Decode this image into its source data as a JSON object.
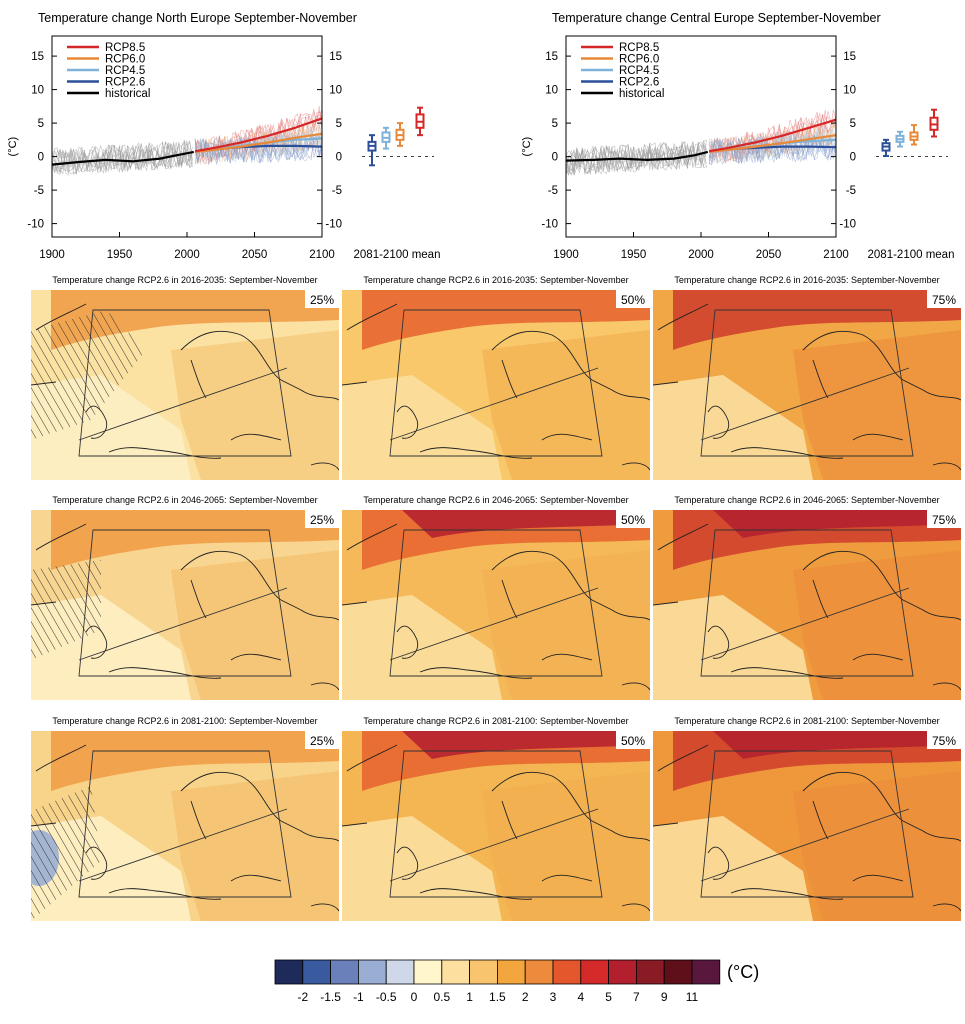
{
  "time_series_panels": [
    {
      "title": "Temperature change North Europe September-November",
      "ylabel": "(°C)",
      "xlabel_right": "2081-2100 mean",
      "chart_data": {
        "type": "line",
        "xlim": [
          1900,
          2100
        ],
        "ylim": [
          -12,
          18
        ],
        "x_ticks": [
          "1900",
          "1950",
          "2000",
          "2050",
          "2100"
        ],
        "y_ticks": [
          "15",
          "10",
          "5",
          "0",
          "-5",
          "-10"
        ],
        "grid": false,
        "legend_position": "top-left",
        "series": [
          {
            "name": "RCP8.5",
            "color": "#d62728",
            "x": [
              2006,
              2020,
              2040,
              2060,
              2080,
              2100
            ],
            "y": [
              0.8,
              1.3,
              2.1,
              3.1,
              4.3,
              5.7
            ]
          },
          {
            "name": "RCP6.0",
            "color": "#e8893a",
            "x": [
              2006,
              2020,
              2040,
              2060,
              2080,
              2100
            ],
            "y": [
              0.7,
              1.0,
              1.5,
              2.1,
              2.8,
              3.4
            ]
          },
          {
            "name": "RCP4.5",
            "color": "#7fb2d9",
            "x": [
              2006,
              2020,
              2040,
              2060,
              2080,
              2100
            ],
            "y": [
              0.7,
              1.1,
              1.6,
              2.1,
              2.5,
              2.7
            ]
          },
          {
            "name": "RCP2.6",
            "color": "#2c4f9a",
            "x": [
              2006,
              2020,
              2040,
              2060,
              2080,
              2100
            ],
            "y": [
              0.7,
              1.1,
              1.4,
              1.6,
              1.6,
              1.5
            ]
          },
          {
            "name": "historical",
            "color": "#000000",
            "x": [
              1900,
              1920,
              1940,
              1960,
              1980,
              1995,
              2005
            ],
            "y": [
              -1.2,
              -0.8,
              -0.5,
              -0.7,
              -0.3,
              0.3,
              0.7
            ]
          }
        ],
        "boxes_2081_2100": [
          {
            "name": "RCP2.6",
            "color": "#2c4f9a",
            "min": -1.3,
            "q1": 0.9,
            "median": 1.6,
            "q3": 2.2,
            "max": 3.2
          },
          {
            "name": "RCP4.5",
            "color": "#7fb2d9",
            "min": 1.2,
            "q1": 2.2,
            "median": 2.8,
            "q3": 3.6,
            "max": 4.3
          },
          {
            "name": "RCP6.0",
            "color": "#e8893a",
            "min": 1.6,
            "q1": 2.5,
            "median": 3.2,
            "q3": 4.0,
            "max": 5.0
          },
          {
            "name": "RCP8.5",
            "color": "#d62728",
            "min": 3.2,
            "q1": 4.3,
            "median": 5.2,
            "q3": 6.3,
            "max": 7.3
          }
        ]
      }
    },
    {
      "title": "Temperature change Central Europe September-November",
      "ylabel": "(°C)",
      "xlabel_right": "2081-2100 mean",
      "chart_data": {
        "type": "line",
        "xlim": [
          1900,
          2100
        ],
        "ylim": [
          -12,
          18
        ],
        "x_ticks": [
          "1900",
          "1950",
          "2000",
          "2050",
          "2100"
        ],
        "y_ticks": [
          "15",
          "10",
          "5",
          "0",
          "-5",
          "-10"
        ],
        "grid": false,
        "legend_position": "top-left",
        "series": [
          {
            "name": "RCP8.5",
            "color": "#d62728",
            "x": [
              2006,
              2020,
              2040,
              2060,
              2080,
              2100
            ],
            "y": [
              0.8,
              1.3,
              2.1,
              3.1,
              4.3,
              5.5
            ]
          },
          {
            "name": "RCP6.0",
            "color": "#e8893a",
            "x": [
              2006,
              2020,
              2040,
              2060,
              2080,
              2100
            ],
            "y": [
              0.7,
              1.0,
              1.5,
              2.0,
              2.6,
              3.2
            ]
          },
          {
            "name": "RCP4.5",
            "color": "#7fb2d9",
            "x": [
              2006,
              2020,
              2040,
              2060,
              2080,
              2100
            ],
            "y": [
              0.7,
              1.1,
              1.5,
              2.0,
              2.3,
              2.5
            ]
          },
          {
            "name": "RCP2.6",
            "color": "#2c4f9a",
            "x": [
              2006,
              2020,
              2040,
              2060,
              2080,
              2100
            ],
            "y": [
              0.7,
              1.1,
              1.3,
              1.5,
              1.5,
              1.4
            ]
          },
          {
            "name": "historical",
            "color": "#000000",
            "x": [
              1900,
              1920,
              1940,
              1960,
              1980,
              1995,
              2005
            ],
            "y": [
              -0.6,
              -0.5,
              -0.3,
              -0.5,
              -0.3,
              0.2,
              0.7
            ]
          }
        ],
        "boxes_2081_2100": [
          {
            "name": "RCP2.6",
            "color": "#2c4f9a",
            "min": 0.1,
            "q1": 0.9,
            "median": 1.5,
            "q3": 2.0,
            "max": 2.5
          },
          {
            "name": "RCP4.5",
            "color": "#7fb2d9",
            "min": 1.5,
            "q1": 2.2,
            "median": 2.6,
            "q3": 3.1,
            "max": 3.7
          },
          {
            "name": "RCP6.0",
            "color": "#e8893a",
            "min": 1.8,
            "q1": 2.5,
            "median": 3.0,
            "q3": 3.6,
            "max": 4.7
          },
          {
            "name": "RCP8.5",
            "color": "#d62728",
            "min": 3.0,
            "q1": 4.0,
            "median": 4.8,
            "q3": 5.8,
            "max": 7.0
          }
        ]
      }
    }
  ],
  "map_rows": [
    {
      "period": "2016-2035",
      "title": "Temperature change RCP2.6 in 2016-2035: September-November"
    },
    {
      "period": "2046-2065",
      "title": "Temperature change RCP2.6 in 2046-2065: September-November"
    },
    {
      "period": "2081-2100",
      "title": "Temperature change RCP2.6 in 2081-2100: September-November"
    }
  ],
  "percentiles": [
    "25%",
    "50%",
    "75%"
  ],
  "map_levels": [
    [
      "#fbe2a2",
      "#f8c86a",
      "#f1a745"
    ],
    [
      "#f8d590",
      "#f5b95a",
      "#ef9c3e"
    ],
    [
      "#f8d38a",
      "#f4b553",
      "#ee983b"
    ]
  ],
  "colorbar": {
    "unit": "(°C)",
    "colors": [
      "#1e2a5a",
      "#3a5aa0",
      "#6a80bb",
      "#9aaed3",
      "#cfd8e8",
      "#fff6cc",
      "#fde0a0",
      "#f9c46e",
      "#f3a63e",
      "#ee8a3c",
      "#e4572c",
      "#d42a2a",
      "#b2202e",
      "#8a1a24",
      "#5e0f1a",
      "#5a173e"
    ],
    "labels": [
      "-2",
      "-1.5",
      "-1",
      "-0.5",
      "0",
      "0.5",
      "1",
      "1.5",
      "2",
      "3",
      "4",
      "5",
      "7",
      "9",
      "11"
    ]
  }
}
